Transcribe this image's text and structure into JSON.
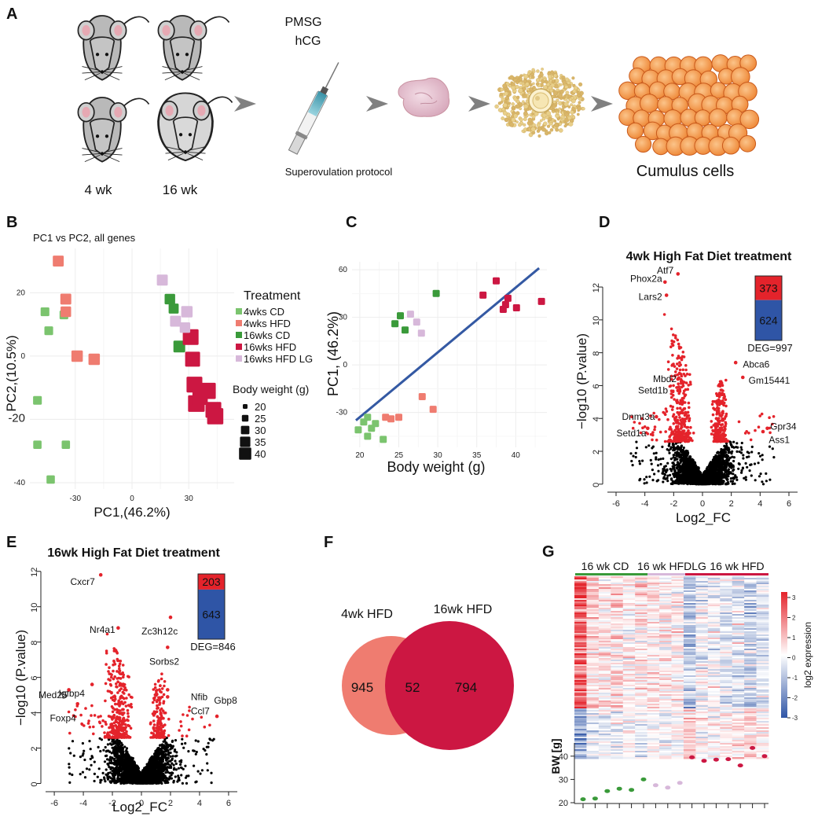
{
  "colors": {
    "cd4": "#7bc46e",
    "hfd4": "#ef7c70",
    "cd16": "#3a9a3a",
    "hfd16": "#cc1742",
    "hfdlg16": "#d7b8da",
    "up": "#e4232b",
    "down": "#2f55a6",
    "regline": "#3459a3"
  },
  "panelA": {
    "label": "A",
    "mouse_age_labels": [
      "4 wk",
      "16 wk"
    ],
    "hormones": [
      "PMSG",
      "hCG"
    ],
    "protocol_label": "Superovulation protocol",
    "cells_label": "Cumulus cells"
  },
  "panelB": {
    "label": "B",
    "chart_data": {
      "type": "scatter",
      "title": "PC1 vs PC2, all genes",
      "xlabel": "PC1,(46.2%)",
      "ylabel": "PC2,(10.5%)",
      "xticks": [
        "-30",
        "0",
        "30"
      ],
      "yticks": [
        "20",
        "0",
        "-20",
        "-40"
      ],
      "xlim": [
        -54,
        54
      ],
      "ylim": [
        -42,
        34
      ],
      "legend_title": "Treatment",
      "legend": [
        "4wks CD",
        "4wks HFD",
        "16wks CD",
        "16wks HFD",
        "16wks HFD LG"
      ],
      "size_legend_title": "Body weight (g)",
      "size_legend": [
        "20",
        "25",
        "30",
        "35",
        "40"
      ],
      "series": [
        {
          "group": "cd4",
          "x": [
            -46,
            -36,
            -44,
            -50,
            -35,
            -50,
            -43
          ],
          "y": [
            14,
            13,
            8,
            -14,
            -28,
            -28,
            -39
          ],
          "w": [
            22,
            22,
            22,
            22,
            21,
            21,
            21
          ]
        },
        {
          "group": "hfd4",
          "x": [
            -39,
            -35,
            -35,
            -29,
            -20
          ],
          "y": [
            30,
            18,
            14,
            0,
            -1
          ],
          "w": [
            27,
            27,
            26,
            28,
            28
          ]
        },
        {
          "group": "cd16",
          "x": [
            20,
            22,
            25,
            44
          ],
          "y": [
            18,
            15,
            3,
            -19
          ],
          "w": [
            26,
            25,
            29,
            30
          ]
        },
        {
          "group": "hfd16",
          "x": [
            31,
            32,
            33,
            34,
            36,
            40,
            43,
            44
          ],
          "y": [
            6,
            -1,
            -9,
            -15,
            -13,
            -11,
            -17,
            -19
          ],
          "w": [
            38,
            36,
            38,
            40,
            37,
            39,
            38,
            39
          ]
        },
        {
          "group": "hfdlg16",
          "x": [
            16,
            29,
            28,
            23
          ],
          "y": [
            24,
            14,
            9,
            11
          ],
          "w": [
            27,
            28,
            26,
            27
          ]
        }
      ]
    }
  },
  "panelC": {
    "label": "C",
    "chart_data": {
      "type": "scatter",
      "xlabel": "Body weight (g)",
      "ylabel": "PC1, (46.2%)",
      "xticks": [
        "20",
        "25",
        "30",
        "35",
        "40"
      ],
      "yticks": [
        "60",
        "30",
        "0",
        "-30"
      ],
      "xlim": [
        19,
        44
      ],
      "ylim": [
        -52,
        65
      ],
      "fit_line": {
        "x": [
          19.5,
          43
        ],
        "y": [
          -35,
          61
        ]
      },
      "series": [
        {
          "group": "cd4",
          "x": [
            19.8,
            20.5,
            21,
            21.5,
            21,
            22,
            23
          ],
          "y": [
            -41,
            -36,
            -45,
            -40,
            -33,
            -37,
            -47
          ]
        },
        {
          "group": "hfd4",
          "x": [
            23.3,
            24,
            25,
            28,
            29.4
          ],
          "y": [
            -33,
            -34,
            -33,
            -20,
            -28
          ]
        },
        {
          "group": "cd16",
          "x": [
            24.5,
            25.2,
            25.8,
            29.8
          ],
          "y": [
            26,
            31,
            22,
            45
          ]
        },
        {
          "group": "hfd16",
          "x": [
            35.8,
            37.5,
            38.4,
            38.7,
            39,
            40.1,
            43.3
          ],
          "y": [
            44,
            53,
            35,
            38,
            42,
            36,
            40
          ]
        },
        {
          "group": "hfdlg16",
          "x": [
            26.5,
            27.3,
            27.9
          ],
          "y": [
            32,
            27,
            20
          ]
        }
      ]
    }
  },
  "panelD": {
    "label": "D",
    "chart_data": {
      "type": "scatter",
      "title": "4wk High Fat Diet treatment",
      "xlabel": "Log2_FC",
      "ylabel": "−log10 (P.value)",
      "xticks": [
        "-6",
        "-4",
        "-2",
        "0",
        "2",
        "4",
        "6"
      ],
      "yticks": [
        "0",
        "2",
        "4",
        "6",
        "8",
        "10",
        "12"
      ],
      "xlim": [
        -6.6,
        6.6
      ],
      "ylim": [
        -0.2,
        13.2
      ],
      "threshold_y": 2.6,
      "up_count": "373",
      "down_count": "624",
      "up_value": 373,
      "down_value": 624,
      "deg_label": "DEG=997",
      "annotations": [
        {
          "text": "Atf7",
          "x": -1.7,
          "y": 12.8,
          "anchor": "end",
          "lx": -0.3,
          "ly": 0.2
        },
        {
          "text": "Phox2a",
          "x": -2.6,
          "y": 12.3,
          "anchor": "end",
          "lx": -0.2,
          "ly": 0.2
        },
        {
          "text": "Lars2",
          "x": -2.5,
          "y": 11.5,
          "anchor": "end",
          "lx": -0.3,
          "ly": -0.1
        },
        {
          "text": "Abca6",
          "x": 2.3,
          "y": 7.4,
          "anchor": "start",
          "lx": 0.5,
          "ly": -0.1
        },
        {
          "text": "Gm15441",
          "x": 2.8,
          "y": 6.5,
          "anchor": "start",
          "lx": 0.4,
          "ly": -0.2
        },
        {
          "text": "Mbd2",
          "x": -1.7,
          "y": 6.4,
          "anchor": "end",
          "lx": -0.1,
          "ly": 0.0
        },
        {
          "text": "Setd1b",
          "x": -1.7,
          "y": 5.7,
          "anchor": "end",
          "lx": -0.7,
          "ly": 0.0
        },
        {
          "text": "Dnmt3a",
          "x": -3.2,
          "y": 4.1,
          "anchor": "end",
          "lx": -0.1,
          "ly": 0.0
        },
        {
          "text": "Setd1a",
          "x": -3.8,
          "y": 3.4,
          "anchor": "end",
          "lx": -0.1,
          "ly": -0.3
        },
        {
          "text": "Gpr34",
          "x": 4.5,
          "y": 3.4,
          "anchor": "start",
          "lx": 0.2,
          "ly": 0.1
        },
        {
          "text": "Ass1",
          "x": 4.2,
          "y": 3.2,
          "anchor": "start",
          "lx": 0.4,
          "ly": -0.5
        }
      ]
    }
  },
  "panelE": {
    "label": "E",
    "chart_data": {
      "type": "scatter",
      "title": "16wk High Fat Diet treatment",
      "xlabel": "Log2_FC",
      "ylabel": "−log10 (P.value)",
      "xticks": [
        "-6",
        "-4",
        "-2",
        "0",
        "2",
        "4",
        "6"
      ],
      "yticks": [
        "0",
        "2",
        "4",
        "6",
        "8",
        "10",
        "12"
      ],
      "xlim": [
        -6.6,
        6.6
      ],
      "ylim": [
        -0.2,
        12.3
      ],
      "threshold_y": 2.6,
      "up_count": "203",
      "down_count": "643",
      "up_value": 203,
      "down_value": 643,
      "deg_label": "DEG=846",
      "annotations": [
        {
          "text": "Cxcr7",
          "x": -2.8,
          "y": 11.8,
          "anchor": "end",
          "lx": -0.4,
          "ly": -0.4
        },
        {
          "text": "Nr4a1",
          "x": -1.6,
          "y": 8.8,
          "anchor": "end",
          "lx": -0.2,
          "ly": -0.1
        },
        {
          "text": "Zc3h12c",
          "x": 2.0,
          "y": 9.4,
          "anchor": "end",
          "lx": 0.5,
          "ly": -0.8
        },
        {
          "text": "Sorbs2",
          "x": 1.8,
          "y": 7.7,
          "anchor": "end",
          "lx": 0.8,
          "ly": -0.8
        },
        {
          "text": "Igfbp4",
          "x": -3.4,
          "y": 5.6,
          "anchor": "end",
          "lx": -0.5,
          "ly": -0.5
        },
        {
          "text": "Med25",
          "x": -5.0,
          "y": 5.3,
          "anchor": "end",
          "lx": -0.1,
          "ly": -0.3
        },
        {
          "text": "Foxp4",
          "x": -4.4,
          "y": 4.5,
          "anchor": "end",
          "lx": -0.1,
          "ly": -0.8
        },
        {
          "text": "Nfib",
          "x": 1.8,
          "y": 5.3,
          "anchor": "start",
          "lx": 1.6,
          "ly": -0.4
        },
        {
          "text": "Ccl7",
          "x": 1.8,
          "y": 4.9,
          "anchor": "start",
          "lx": 1.6,
          "ly": -0.8
        },
        {
          "text": "Gbp8",
          "x": 5.2,
          "y": 3.8,
          "anchor": "start",
          "lx": -0.2,
          "ly": 0.9
        }
      ]
    }
  },
  "panelF": {
    "label": "F",
    "chart_data": {
      "type": "venn",
      "sets": [
        {
          "name": "4wk HFD",
          "only": "945"
        },
        {
          "name": "16wk HFD",
          "only": "794"
        }
      ],
      "overlap": "52"
    }
  },
  "panelG": {
    "label": "G",
    "heatmap_groups": [
      "16 wk CD",
      "16 wk HFDLG",
      "16 wk HFD"
    ],
    "colorbar_label": "log2 expression",
    "colorbar_ticks": [
      "3",
      "2",
      "1",
      "0",
      "-1",
      "-2",
      "-3"
    ],
    "chart_data": {
      "type": "scatter",
      "ylabel": "BW [g]",
      "yticks": [
        "40",
        "30",
        "20"
      ],
      "ylim": [
        20,
        45
      ],
      "values": [
        21.5,
        21.8,
        25,
        26,
        25.5,
        30,
        27.5,
        26.5,
        28.5,
        39.5,
        38,
        38.5,
        38.7,
        36,
        43.5,
        40
      ],
      "groups": [
        "cd16",
        "cd16",
        "cd16",
        "cd16",
        "cd16",
        "cd16",
        "hfdlg16",
        "hfdlg16",
        "hfdlg16",
        "hfd16",
        "hfd16",
        "hfd16",
        "hfd16",
        "hfd16",
        "hfd16",
        "hfd16"
      ]
    }
  }
}
